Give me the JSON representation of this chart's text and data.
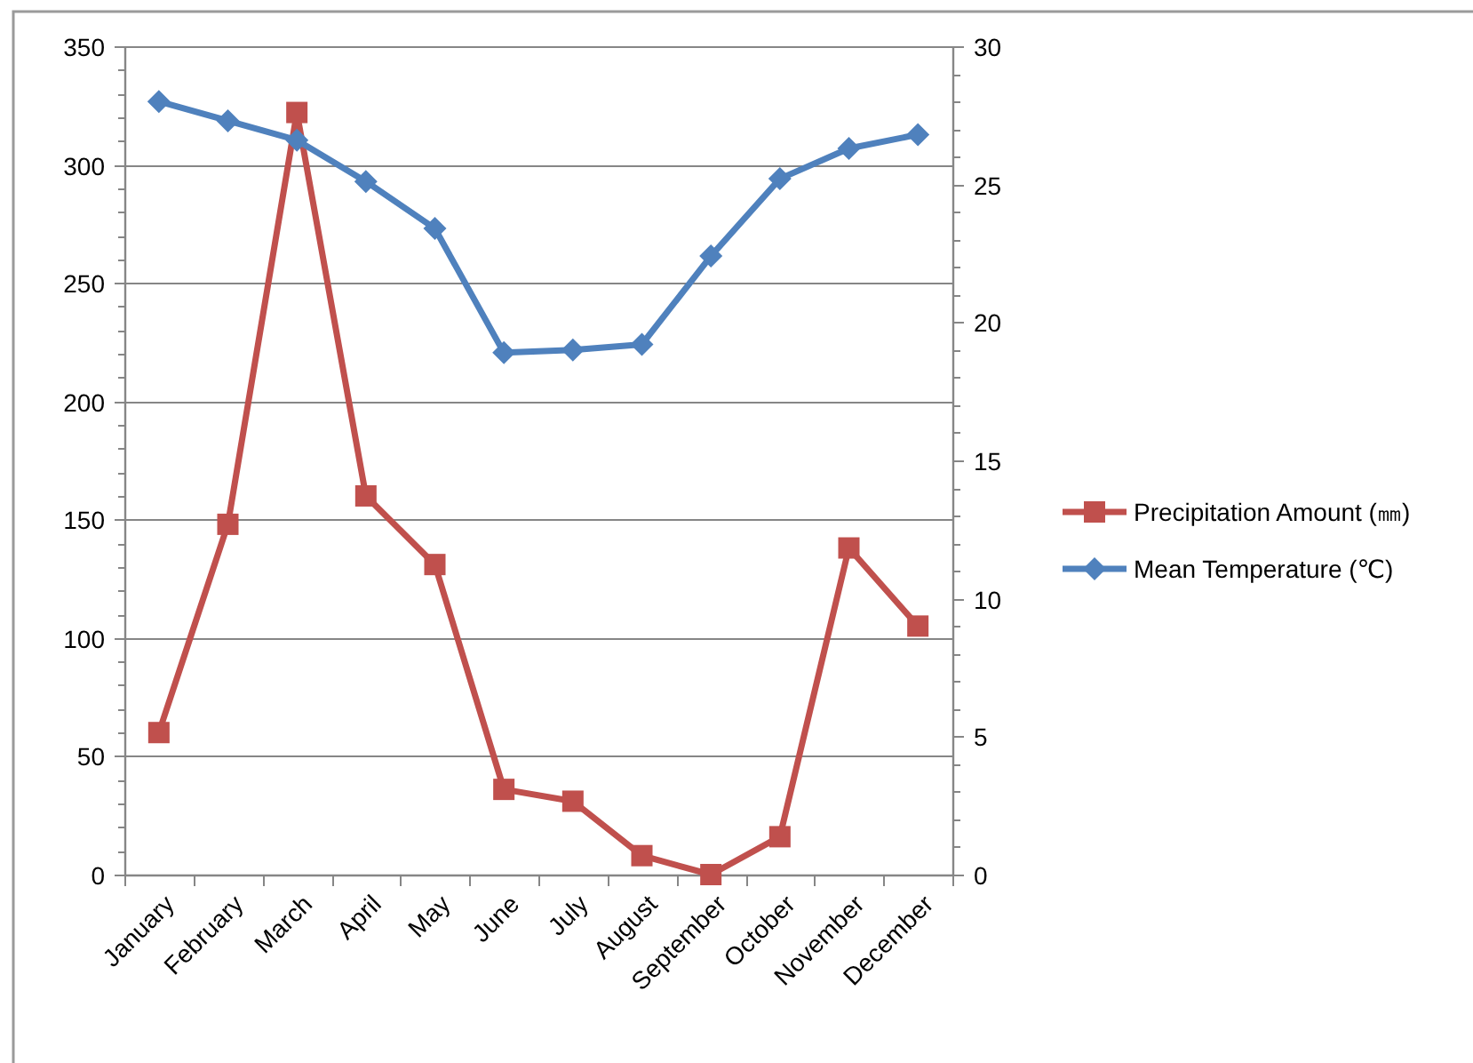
{
  "chart_data": {
    "type": "line",
    "categories": [
      "January",
      "February",
      "March",
      "April",
      "May",
      "June",
      "July",
      "August",
      "September",
      "October",
      "November",
      "December"
    ],
    "series": [
      {
        "name": "Precipitation Amount (㎜)",
        "color": "#c0504d",
        "marker": "square",
        "values": [
          60,
          148,
          322,
          160,
          131,
          36,
          31,
          8,
          0,
          16,
          138,
          105
        ]
      },
      {
        "name": "Mean Temperature (℃)",
        "color": "#4f81bd",
        "marker": "diamond",
        "axis": "y2",
        "values": [
          28.0,
          27.3,
          26.6,
          25.1,
          23.4,
          18.9,
          19.0,
          19.2,
          22.4,
          25.2,
          26.3,
          26.8
        ]
      }
    ],
    "ylim": [
      0,
      350
    ],
    "yticks": [
      0,
      {
        "value": 10,
        "label": null
      },
      {
        "value": 20,
        "label": null
      },
      {
        "value": 30,
        "label": null
      },
      {
        "value": 40,
        "label": null
      },
      50,
      {
        "value": 60,
        "label": null
      },
      {
        "value": 70,
        "label": null
      },
      {
        "value": 80,
        "label": null
      },
      {
        "value": 90,
        "label": null
      },
      100,
      {
        "value": 110,
        "label": null
      },
      {
        "value": 120,
        "label": null
      },
      {
        "value": 130,
        "label": null
      },
      {
        "value": 140,
        "label": null
      },
      150,
      {
        "value": 160,
        "label": null
      },
      {
        "value": 170,
        "label": null
      },
      {
        "value": 180,
        "label": null
      },
      {
        "value": 190,
        "label": null
      },
      200,
      {
        "value": 210,
        "label": null
      },
      {
        "value": 220,
        "label": null
      },
      {
        "value": 230,
        "label": null
      },
      {
        "value": 240,
        "label": null
      },
      250,
      {
        "value": 260,
        "label": null
      },
      {
        "value": 270,
        "label": null
      },
      {
        "value": 280,
        "label": null
      },
      {
        "value": 290,
        "label": null
      },
      300,
      {
        "value": 310,
        "label": null
      },
      {
        "value": 320,
        "label": null
      },
      {
        "value": 330,
        "label": null
      },
      {
        "value": 340,
        "label": null
      },
      350
    ],
    "y2lim": [
      0,
      30
    ],
    "y2ticks": [
      0,
      {
        "value": 1,
        "label": null
      },
      {
        "value": 2,
        "label": null
      },
      {
        "value": 3,
        "label": null
      },
      {
        "value": 4,
        "label": null
      },
      5,
      {
        "value": 6,
        "label": null
      },
      {
        "value": 7,
        "label": null
      },
      {
        "value": 8,
        "label": null
      },
      {
        "value": 9,
        "label": null
      },
      10,
      {
        "value": 11,
        "label": null
      },
      {
        "value": 12,
        "label": null
      },
      {
        "value": 13,
        "label": null
      },
      {
        "value": 14,
        "label": null
      },
      15,
      {
        "value": 16,
        "label": null
      },
      {
        "value": 17,
        "label": null
      },
      {
        "value": 18,
        "label": null
      },
      {
        "value": 19,
        "label": null
      },
      20,
      {
        "value": 21,
        "label": null
      },
      {
        "value": 22,
        "label": null
      },
      {
        "value": 23,
        "label": null
      },
      {
        "value": 24,
        "label": null
      },
      25,
      {
        "value": 26,
        "label": null
      },
      {
        "value": 27,
        "label": null
      },
      {
        "value": 28,
        "label": null
      },
      {
        "value": 29,
        "label": null
      },
      30
    ],
    "grid": "y",
    "legend": "right"
  }
}
